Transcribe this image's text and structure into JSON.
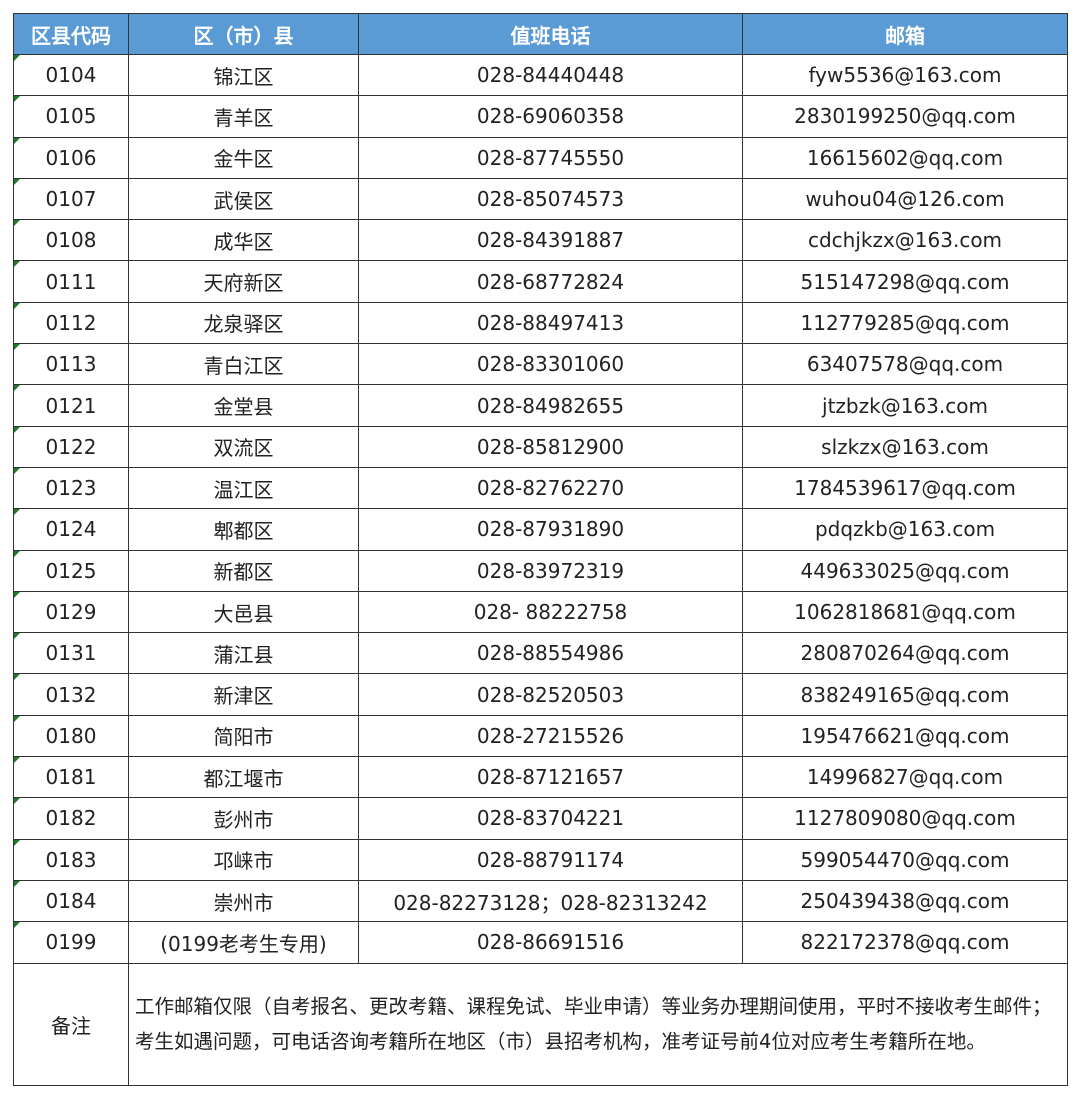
{
  "headers": [
    "区县代码",
    "区（市）县",
    "值班电话",
    "邮箱"
  ],
  "rows": [
    [
      "0104",
      "锦江区",
      "028-84440448",
      "fyw5536@163.com"
    ],
    [
      "0105",
      "青羊区",
      "028-69060358",
      "2830199250@qq.com"
    ],
    [
      "0106",
      "金牛区",
      "028-87745550",
      "16615602@qq.com"
    ],
    [
      "0107",
      "武侯区",
      "028-85074573",
      "wuhou04@126.com"
    ],
    [
      "0108",
      "成华区",
      "028-84391887",
      "cdchjkzx@163.com"
    ],
    [
      "0111",
      "天府新区",
      "028-68772824",
      "515147298@qq.com"
    ],
    [
      "0112",
      "龙泉驿区",
      "028-88497413",
      "112779285@qq.com"
    ],
    [
      "0113",
      "青白江区",
      "028-83301060",
      "63407578@qq.com"
    ],
    [
      "0121",
      "金堂县",
      "028-84982655",
      "jtzbzk@163.com"
    ],
    [
      "0122",
      "双流区",
      "028-85812900",
      "slzkzx@163.com"
    ],
    [
      "0123",
      "温江区",
      "028-82762270",
      "1784539617@qq.com"
    ],
    [
      "0124",
      "郫都区",
      "028-87931890",
      "pdqzkb@163.com"
    ],
    [
      "0125",
      "新都区",
      "028-83972319",
      "449633025@qq.com"
    ],
    [
      "0129",
      "大邑县",
      "028- 88222758",
      "1062818681@qq.com"
    ],
    [
      "0131",
      "蒲江县",
      "028-88554986",
      "280870264@qq.com"
    ],
    [
      "0132",
      "新津区",
      "028-82520503",
      "838249165@qq.com"
    ],
    [
      "0180",
      "简阳市",
      "028-27215526",
      "195476621@qq.com"
    ],
    [
      "0181",
      "都江堰市",
      "028-87121657",
      "14996827@qq.com"
    ],
    [
      "0182",
      "彭州市",
      "028-83704221",
      "1127809080@qq.com"
    ],
    [
      "0183",
      "邛崃市",
      "028-88791174",
      "599054470@qq.com"
    ],
    [
      "0184",
      "崇州市",
      "028-82273128；028-82313242",
      "250439438@qq.com"
    ],
    [
      "0199",
      "(0199老考生专用)",
      "028-86691516",
      "822172378@qq.com"
    ]
  ],
  "note": {
    "label": "备注",
    "text": "工作邮箱仅限（自考报名、更改考籍、课程免试、毕业申请）等业务办理期间使用，平时不接收考生邮件；考生如遇问题，可电话咨询考籍所在地区（市）县招考机构，准考证号前4位对应考生考籍所在地。"
  },
  "colors": {
    "header_bg": "#5b9bd5",
    "header_text": "#ffffff"
  }
}
